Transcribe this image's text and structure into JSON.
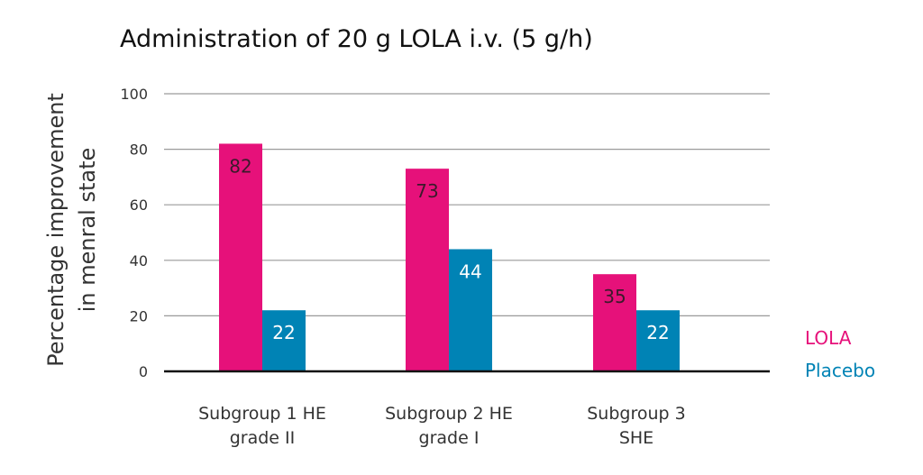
{
  "chart_data": {
    "type": "bar",
    "title": "Administration of 20 g LOLA i.v. (5 g/h)",
    "ylabel_lines": [
      "Percentage improvement",
      "in menral state"
    ],
    "xlabel": "",
    "ylim": [
      0,
      100
    ],
    "yticks": [
      0,
      20,
      40,
      60,
      80,
      100
    ],
    "grid": true,
    "legend_placement": "right",
    "categories": [
      [
        "Subgroup 1 HE",
        "grade II"
      ],
      [
        "Subgroup 2 HE",
        "grade I"
      ],
      [
        "Subgroup 3",
        "SHE"
      ]
    ],
    "series": [
      {
        "name": "LOLA",
        "values": [
          82,
          73,
          35
        ],
        "color": "#e6117a",
        "label_color": "#3b1a2b"
      },
      {
        "name": "Placebo",
        "values": [
          22,
          44,
          22
        ],
        "color": "#0083b5",
        "label_color": "#ffffff"
      }
    ]
  }
}
